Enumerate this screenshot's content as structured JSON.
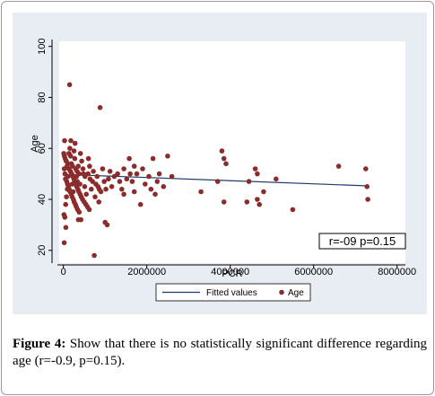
{
  "chart_data": {
    "type": "scatter",
    "title": "",
    "xlabel": "PCR",
    "ylabel": "Age",
    "xlim": [
      -100000,
      8200000
    ],
    "ylim": [
      15,
      102
    ],
    "x_ticks": [
      0,
      2000000,
      4000000,
      6000000,
      8000000
    ],
    "x_tick_labels": [
      "0",
      "2000000",
      "4000000",
      "6000000",
      "8000000"
    ],
    "y_ticks": [
      20,
      40,
      60,
      80,
      100
    ],
    "y_tick_labels": [
      "20",
      "40",
      "60",
      "80",
      "100"
    ],
    "grid": false,
    "legend_position": "bottom",
    "annotation": "r=-09  p=0.15",
    "series": [
      {
        "name": "Age",
        "kind": "scatter",
        "color": "#8b2c2c",
        "points": [
          [
            150000,
            85
          ],
          [
            880000,
            76
          ],
          [
            740000,
            18
          ],
          [
            20000,
            23
          ],
          [
            60000,
            29
          ],
          [
            1050000,
            30
          ],
          [
            1000000,
            31
          ],
          [
            420000,
            32
          ],
          [
            360000,
            32
          ],
          [
            30000,
            63
          ],
          [
            180000,
            63
          ],
          [
            280000,
            62
          ],
          [
            410000,
            58
          ],
          [
            600000,
            56
          ],
          [
            70000,
            55
          ],
          [
            110000,
            54
          ],
          [
            220000,
            53
          ],
          [
            330000,
            51
          ],
          [
            480000,
            50
          ],
          [
            520000,
            49
          ],
          [
            640000,
            48
          ],
          [
            700000,
            47
          ],
          [
            780000,
            46
          ],
          [
            830000,
            45
          ],
          [
            860000,
            44
          ],
          [
            900000,
            43
          ],
          [
            20000,
            52
          ],
          [
            40000,
            50
          ],
          [
            50000,
            48
          ],
          [
            80000,
            47
          ],
          [
            100000,
            46
          ],
          [
            120000,
            45
          ],
          [
            140000,
            44
          ],
          [
            160000,
            43
          ],
          [
            190000,
            42
          ],
          [
            210000,
            41
          ],
          [
            240000,
            40
          ],
          [
            260000,
            39
          ],
          [
            290000,
            38
          ],
          [
            310000,
            37
          ],
          [
            340000,
            36
          ],
          [
            380000,
            35
          ],
          [
            10000,
            58
          ],
          [
            25000,
            57
          ],
          [
            45000,
            56
          ],
          [
            65000,
            55
          ],
          [
            90000,
            53
          ],
          [
            130000,
            52
          ],
          [
            170000,
            51
          ],
          [
            200000,
            50
          ],
          [
            230000,
            49
          ],
          [
            250000,
            48
          ],
          [
            270000,
            47
          ],
          [
            300000,
            46
          ],
          [
            320000,
            45
          ],
          [
            350000,
            44
          ],
          [
            370000,
            43
          ],
          [
            400000,
            42
          ],
          [
            430000,
            41
          ],
          [
            460000,
            40
          ],
          [
            500000,
            39
          ],
          [
            540000,
            38
          ],
          [
            580000,
            37
          ],
          [
            620000,
            36
          ],
          [
            15000,
            34
          ],
          [
            35000,
            33
          ],
          [
            55000,
            38
          ],
          [
            75000,
            41
          ],
          [
            95000,
            44
          ],
          [
            115000,
            49
          ],
          [
            135000,
            58
          ],
          [
            155000,
            60
          ],
          [
            175000,
            57
          ],
          [
            195000,
            54
          ],
          [
            215000,
            46
          ],
          [
            235000,
            43
          ],
          [
            255000,
            59
          ],
          [
            275000,
            56
          ],
          [
            295000,
            52
          ],
          [
            315000,
            49
          ],
          [
            335000,
            47
          ],
          [
            355000,
            53
          ],
          [
            375000,
            50
          ],
          [
            395000,
            46
          ],
          [
            440000,
            55
          ],
          [
            470000,
            52
          ],
          [
            510000,
            45
          ],
          [
            550000,
            42
          ],
          [
            590000,
            50
          ],
          [
            630000,
            53
          ],
          [
            670000,
            44
          ],
          [
            720000,
            51
          ],
          [
            760000,
            41
          ],
          [
            810000,
            49
          ],
          [
            850000,
            39
          ],
          [
            940000,
            52
          ],
          [
            980000,
            47
          ],
          [
            1020000,
            44
          ],
          [
            1080000,
            48
          ],
          [
            1120000,
            51
          ],
          [
            1160000,
            45
          ],
          [
            1220000,
            49
          ],
          [
            1300000,
            50
          ],
          [
            1350000,
            47
          ],
          [
            1400000,
            44
          ],
          [
            1450000,
            52
          ],
          [
            1520000,
            48
          ],
          [
            1580000,
            56
          ],
          [
            1650000,
            47
          ],
          [
            1700000,
            43
          ],
          [
            1760000,
            50
          ],
          [
            1850000,
            38
          ],
          [
            1900000,
            52
          ],
          [
            1960000,
            46
          ],
          [
            2050000,
            49
          ],
          [
            2100000,
            44
          ],
          [
            2150000,
            56
          ],
          [
            2250000,
            47
          ],
          [
            2300000,
            50
          ],
          [
            2400000,
            45
          ],
          [
            2500000,
            57
          ],
          [
            2600000,
            49
          ],
          [
            3300000,
            43
          ],
          [
            3700000,
            47
          ],
          [
            3800000,
            59
          ],
          [
            3850000,
            39
          ],
          [
            3900000,
            54
          ],
          [
            4400000,
            39
          ],
          [
            4450000,
            47
          ],
          [
            4600000,
            52
          ],
          [
            4650000,
            40
          ],
          [
            4700000,
            38
          ],
          [
            4800000,
            43
          ],
          [
            5100000,
            48
          ],
          [
            5500000,
            36
          ],
          [
            6600000,
            53
          ],
          [
            7250000,
            52
          ],
          [
            7280000,
            45
          ],
          [
            7300000,
            40
          ],
          [
            1600000,
            50
          ],
          [
            1450000,
            42
          ],
          [
            1700000,
            53
          ],
          [
            2200000,
            42
          ],
          [
            3850000,
            56
          ],
          [
            4650000,
            50
          ]
        ]
      },
      {
        "name": "Fitted values",
        "kind": "line",
        "color": "#1f3a6e",
        "x": [
          0,
          7300000
        ],
        "y": [
          49.8,
          45.3
        ]
      }
    ]
  },
  "legend": {
    "fitted_label": "Fitted values",
    "age_label": "Age"
  },
  "caption": {
    "label": "Figure 4:",
    "text": " Show that there is no statistically significant difference regarding age (r=-0.9, p=0.15)."
  },
  "colors": {
    "background": "#e8ecf3",
    "plot_area": "#ffffff",
    "points": "#8b2c2c",
    "fit_line": "#1f3a6e"
  }
}
